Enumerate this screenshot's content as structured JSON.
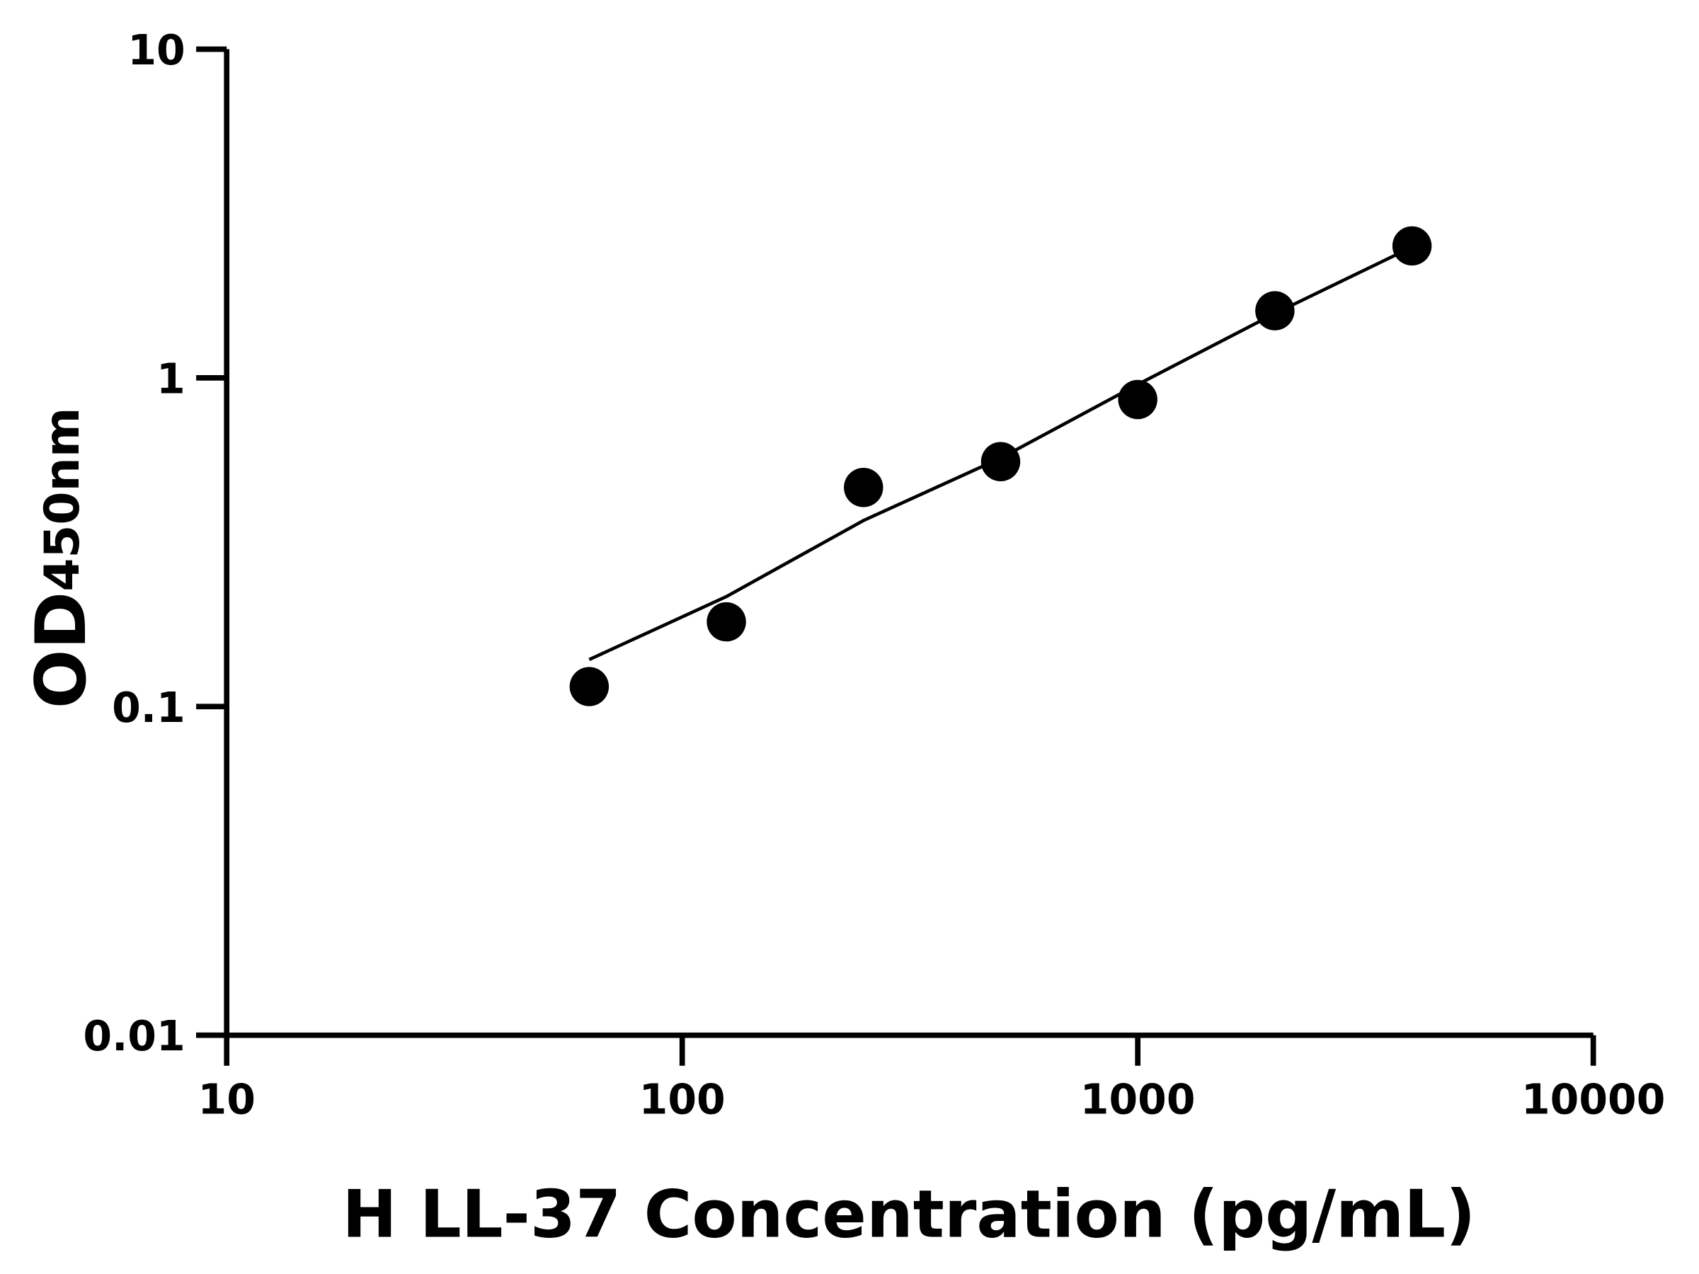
{
  "chart_data": {
    "type": "scatter",
    "title": "",
    "xlabel": "H LL-37 Concentration (pg/mL)",
    "ylabel": {
      "main": "OD",
      "subscript": "450nm"
    },
    "x_scale": "log",
    "y_scale": "log",
    "xlim": [
      10,
      10000
    ],
    "ylim": [
      0.01,
      10
    ],
    "x_ticks": [
      "10",
      "100",
      "1000",
      "10000"
    ],
    "y_ticks": [
      "0.01",
      "0.1",
      "1",
      "10"
    ],
    "grid": false,
    "legend": "none",
    "series": [
      {
        "type": "scatter",
        "x": [
          62.5,
          125,
          250,
          500,
          1000,
          2000,
          4000
        ],
        "y": [
          0.115,
          0.181,
          0.464,
          0.556,
          0.859,
          1.6,
          2.52
        ],
        "color": "#000000"
      },
      {
        "type": "line",
        "x": [
          62.5,
          125,
          250,
          500,
          1000,
          2000,
          4000
        ],
        "y": [
          0.139,
          0.216,
          0.368,
          0.57,
          0.955,
          1.57,
          2.5
        ],
        "color": "#000000"
      }
    ]
  }
}
